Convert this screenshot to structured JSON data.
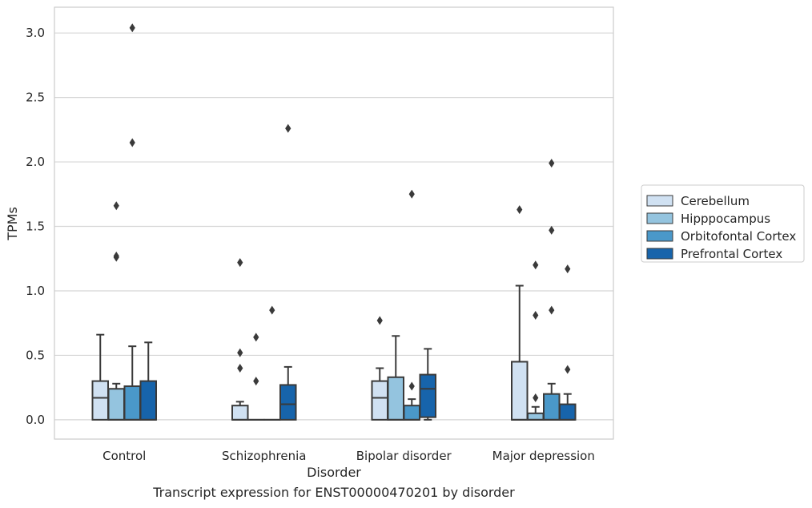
{
  "chart_data": {
    "type": "box",
    "caption": "Transcript expression for ENST00000470201 by disorder",
    "xlabel": "Disorder",
    "ylabel": "TPMs",
    "ylim": [
      -0.15,
      3.2
    ],
    "yticks": [
      "0.0",
      "0.5",
      "1.0",
      "1.5",
      "2.0",
      "2.5",
      "3.0"
    ],
    "grid": "horizontal",
    "legend_position": "right",
    "categories": [
      "Control",
      "Schizophrenia",
      "Bipolar disorder",
      "Major depression"
    ],
    "series": [
      {
        "name": "Cerebellum",
        "color": "#d0e1f2",
        "boxes": [
          {
            "whisker_low": 0.0,
            "q1": 0.0,
            "median": 0.17,
            "q3": 0.3,
            "whisker_high": 0.66,
            "outliers": []
          },
          {
            "whisker_low": 0.0,
            "q1": 0.0,
            "median": 0.0,
            "q3": 0.11,
            "whisker_high": 0.14,
            "outliers": [
              0.4,
              0.52,
              1.22
            ]
          },
          {
            "whisker_low": 0.0,
            "q1": 0.0,
            "median": 0.17,
            "q3": 0.3,
            "whisker_high": 0.4,
            "outliers": [
              0.77
            ]
          },
          {
            "whisker_low": 0.0,
            "q1": 0.0,
            "median": 0.0,
            "q3": 0.45,
            "whisker_high": 1.04,
            "outliers": [
              1.63
            ]
          }
        ]
      },
      {
        "name": "Hipppocampus",
        "color": "#94c4df",
        "boxes": [
          {
            "whisker_low": 0.0,
            "q1": 0.0,
            "median": 0.0,
            "q3": 0.24,
            "whisker_high": 0.28,
            "outliers": [
              1.26,
              1.27,
              1.66
            ]
          },
          {
            "whisker_low": 0.0,
            "q1": 0.0,
            "median": 0.0,
            "q3": 0.0,
            "whisker_high": 0.0,
            "outliers": [
              0.3,
              0.64
            ]
          },
          {
            "whisker_low": 0.0,
            "q1": 0.0,
            "median": 0.0,
            "q3": 0.33,
            "whisker_high": 0.65,
            "outliers": []
          },
          {
            "whisker_low": 0.0,
            "q1": 0.0,
            "median": 0.0,
            "q3": 0.05,
            "whisker_high": 0.1,
            "outliers": [
              0.17,
              0.81,
              1.2
            ]
          }
        ]
      },
      {
        "name": "Orbitofontal Cortex",
        "color": "#4a98c9",
        "boxes": [
          {
            "whisker_low": 0.0,
            "q1": 0.0,
            "median": 0.0,
            "q3": 0.26,
            "whisker_high": 0.57,
            "outliers": [
              2.15,
              3.04
            ]
          },
          {
            "whisker_low": 0.0,
            "q1": 0.0,
            "median": 0.0,
            "q3": 0.0,
            "whisker_high": 0.0,
            "outliers": [
              0.85
            ]
          },
          {
            "whisker_low": 0.0,
            "q1": 0.0,
            "median": 0.0,
            "q3": 0.11,
            "whisker_high": 0.16,
            "outliers": [
              0.26,
              1.75
            ]
          },
          {
            "whisker_low": 0.0,
            "q1": 0.0,
            "median": 0.0,
            "q3": 0.2,
            "whisker_high": 0.28,
            "outliers": [
              0.85,
              1.47,
              1.99
            ]
          }
        ]
      },
      {
        "name": "Prefrontal Cortex",
        "color": "#1764ab",
        "boxes": [
          {
            "whisker_low": 0.0,
            "q1": 0.0,
            "median": 0.0,
            "q3": 0.3,
            "whisker_high": 0.6,
            "outliers": []
          },
          {
            "whisker_low": 0.0,
            "q1": 0.0,
            "median": 0.12,
            "q3": 0.27,
            "whisker_high": 0.41,
            "outliers": [
              2.26
            ]
          },
          {
            "whisker_low": 0.0,
            "q1": 0.02,
            "median": 0.24,
            "q3": 0.35,
            "whisker_high": 0.55,
            "outliers": []
          },
          {
            "whisker_low": 0.0,
            "q1": 0.0,
            "median": 0.0,
            "q3": 0.12,
            "whisker_high": 0.2,
            "outliers": [
              0.39,
              1.17
            ]
          }
        ]
      }
    ]
  }
}
